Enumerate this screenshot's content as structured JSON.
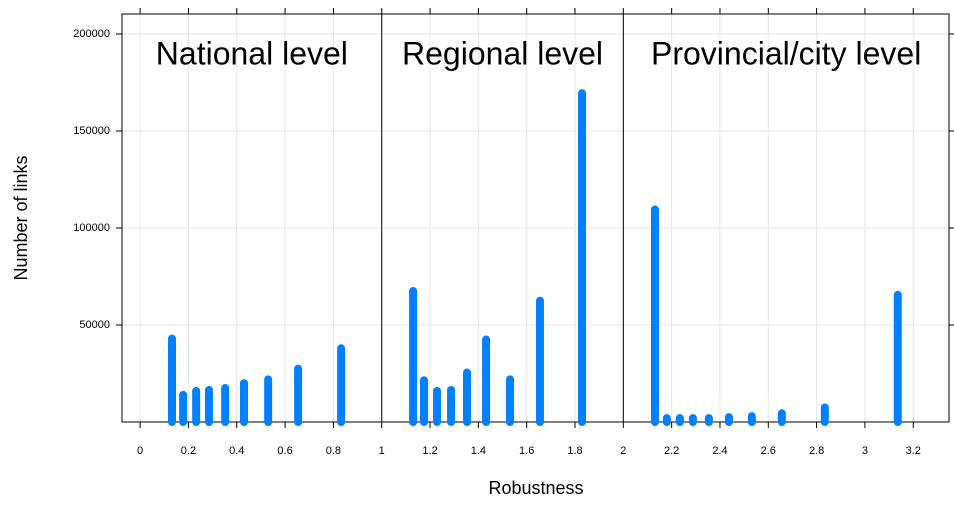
{
  "chart_data": {
    "type": "spike",
    "xlabel": "Robustness",
    "ylabel": "Number of links",
    "panels": [
      "National level",
      "Regional level",
      "Provincial/city level"
    ],
    "panel_breaks": [
      1,
      2
    ],
    "x": [
      0.132,
      0.178,
      0.232,
      0.285,
      0.352,
      0.43,
      0.53,
      0.654,
      0.832,
      1.13,
      1.175,
      1.229,
      1.287,
      1.353,
      1.432,
      1.531,
      1.655,
      1.829,
      2.131,
      2.18,
      2.234,
      2.288,
      2.354,
      2.437,
      2.532,
      2.656,
      2.834,
      3.136
    ],
    "values": [
      43000,
      14000,
      16000,
      16500,
      17500,
      20000,
      22000,
      27500,
      38000,
      67500,
      21500,
      16000,
      16500,
      25500,
      42500,
      22000,
      62500,
      169500,
      109500,
      2000,
      2000,
      2000,
      2000,
      2500,
      3000,
      4500,
      7500,
      65500
    ],
    "color": "#0080ff",
    "xlim": [
      -0.075,
      3.348
    ],
    "ylim": [
      0,
      210300
    ],
    "xticks": [
      0,
      0.2,
      0.4,
      0.6,
      0.8,
      1,
      1.2,
      1.4,
      1.6,
      1.8,
      2,
      2.2,
      2.4,
      2.6,
      2.8,
      3,
      3.2
    ],
    "yticks": [
      50000,
      100000,
      150000,
      200000
    ],
    "grid": true
  }
}
